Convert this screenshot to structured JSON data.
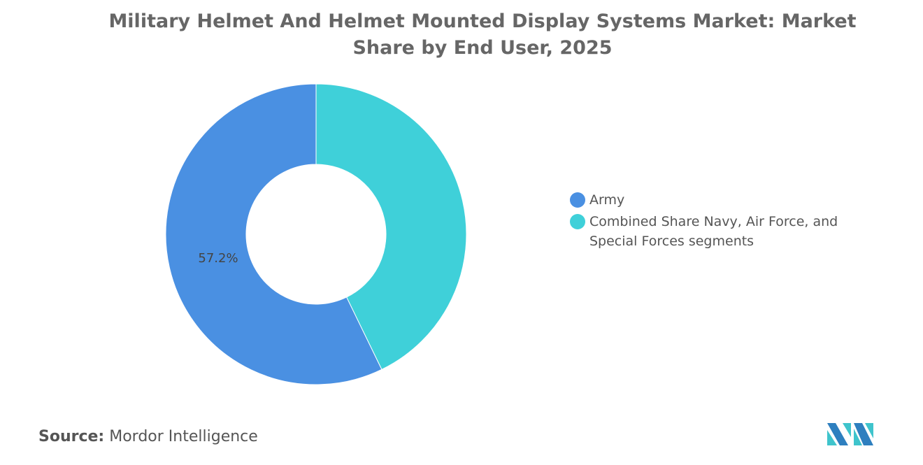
{
  "chart_data": {
    "type": "pie",
    "donut": true,
    "title": "Military Helmet And Helmet Mounted Display Systems Market: Market Share by End User, 2025",
    "categories": [
      "Army",
      "Combined Share Navy, Air Force, and Special Forces segments"
    ],
    "values": [
      57.2,
      42.8
    ],
    "colors": [
      "#4a90e2",
      "#3fd0d9"
    ],
    "data_labels": [
      "57.2%",
      ""
    ],
    "legend_position": "right"
  },
  "source": {
    "label": "Source:",
    "text": "Mordor Intelligence"
  },
  "logo": {
    "name": "mordor-intelligence-logo",
    "colors": [
      "#2e7fbf",
      "#3fc4cc"
    ]
  }
}
